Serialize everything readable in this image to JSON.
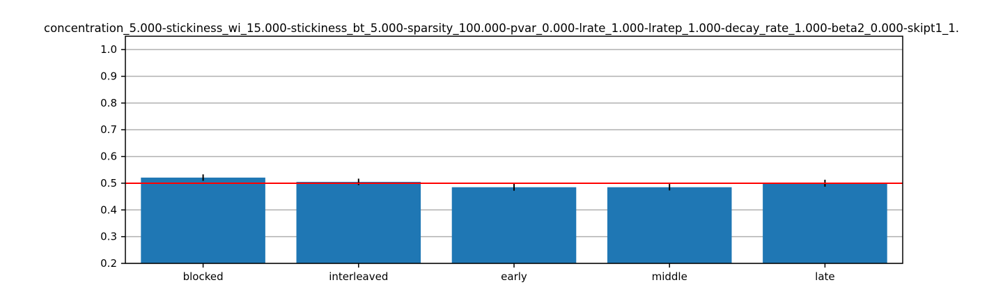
{
  "chart_data": {
    "type": "bar",
    "title": "concentration_5.000-stickiness_wi_15.000-stickiness_bt_5.000-sparsity_100.000-pvar_0.000-lrate_1.000-lratep_1.000-decay_rate_1.000-beta2_0.000-skipt1_1.",
    "xlabel": "",
    "ylabel": "",
    "categories": [
      "blocked",
      "interleaved",
      "early",
      "middle",
      "late"
    ],
    "values": [
      0.521,
      0.505,
      0.485,
      0.485,
      0.5
    ],
    "errors": [
      0.012,
      0.012,
      0.013,
      0.012,
      0.013
    ],
    "ylim": [
      0.2,
      1.05
    ],
    "yticks": [
      0.2,
      0.3,
      0.4,
      0.5,
      0.6,
      0.7,
      0.8,
      0.9,
      1.0
    ],
    "ytick_labels": [
      "0.2",
      "0.3",
      "0.4",
      "0.5",
      "0.6",
      "0.7",
      "0.8",
      "0.9",
      "1.0"
    ],
    "reference_line": 0.5,
    "grid": "horizontal",
    "colors": {
      "bar": "#1f77b4",
      "error_bar": "#000000",
      "reference_line": "#ff0000",
      "grid": "#b0b0b0",
      "axes": "#000000"
    }
  }
}
